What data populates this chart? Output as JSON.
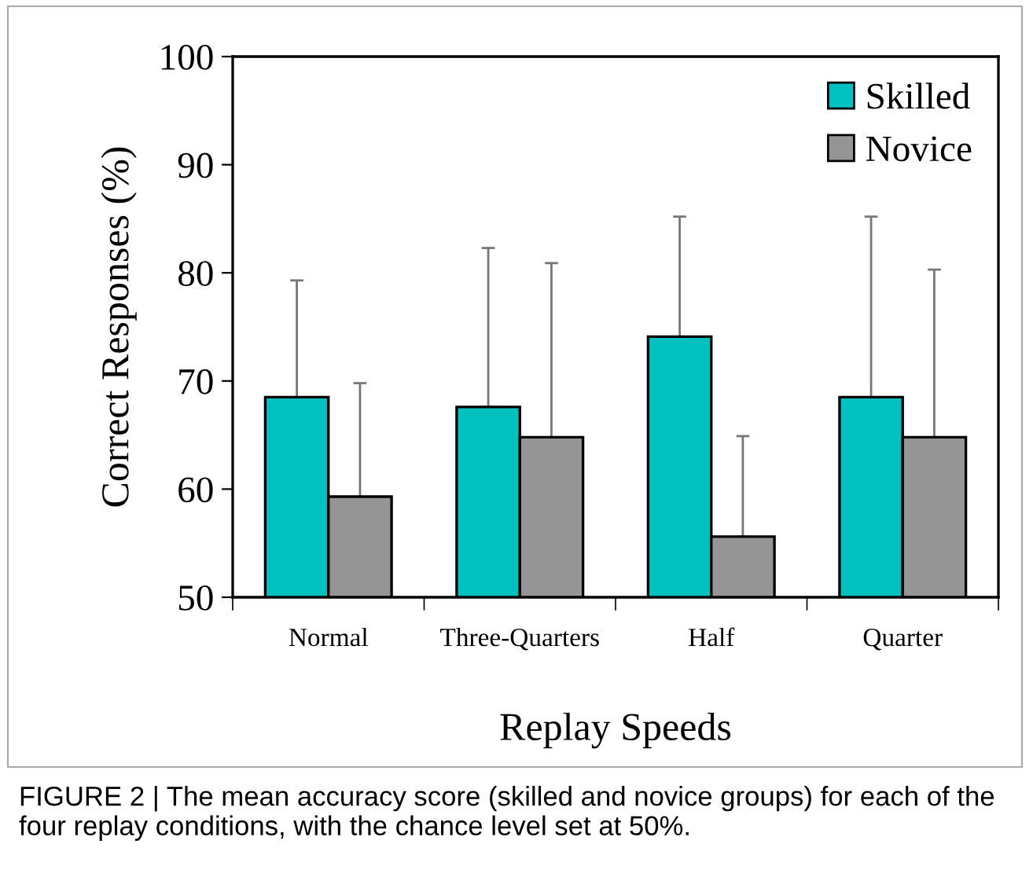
{
  "chart_data": {
    "type": "bar",
    "xlabel": "Replay Speeds",
    "ylabel": "Correct Responses (%)",
    "categories": [
      "Normal",
      "Three-Quarters",
      "Half",
      "Quarter"
    ],
    "series": [
      {
        "name": "Skilled",
        "color": "#00c0c0",
        "values": [
          68.5,
          67.6,
          74.1,
          68.5
        ],
        "errors": [
          [
            68.5,
            79.3
          ],
          [
            67.6,
            82.3
          ],
          [
            74.1,
            85.2
          ],
          [
            68.5,
            85.2
          ]
        ]
      },
      {
        "name": "Novice",
        "color": "#959595",
        "values": [
          59.3,
          64.8,
          55.6,
          64.8
        ],
        "errors": [
          [
            59.3,
            69.8
          ],
          [
            64.8,
            80.9
          ],
          [
            55.6,
            64.9
          ],
          [
            64.8,
            80.3
          ]
        ]
      }
    ],
    "ylim": [
      50,
      100
    ],
    "yticks": [
      50,
      60,
      70,
      80,
      90,
      100
    ],
    "grid": false,
    "legend": "top right",
    "annotations": [
      "FIGURE 2 | The mean accuracy score (skilled and novice groups) for each of the four replay conditions, with the chance level set at 50%."
    ]
  }
}
